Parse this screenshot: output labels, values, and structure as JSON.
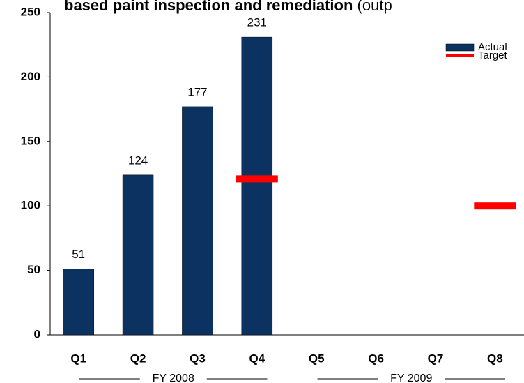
{
  "chart_data": {
    "type": "bar",
    "title": {
      "bold": "based paint inspection and remediation",
      "normal": "(outp"
    },
    "categories": [
      "Q1",
      "Q2",
      "Q3",
      "Q4",
      "Q5",
      "Q6",
      "Q7",
      "Q8"
    ],
    "series": [
      {
        "name": "Actual",
        "color": "#0b3261",
        "values": [
          51,
          124,
          177,
          231,
          null,
          null,
          null,
          null
        ]
      },
      {
        "name": "Target",
        "color": "#ff0000",
        "values": [
          null,
          null,
          null,
          121,
          null,
          null,
          null,
          100
        ]
      }
    ],
    "groups": [
      {
        "label": "FY 2008",
        "span": 4
      },
      {
        "label": "FY 2009",
        "span": 4
      }
    ],
    "ylim": [
      0,
      250
    ],
    "yticks": [
      0,
      50,
      100,
      150,
      200,
      250
    ],
    "grid": false,
    "legend": "top-right"
  }
}
